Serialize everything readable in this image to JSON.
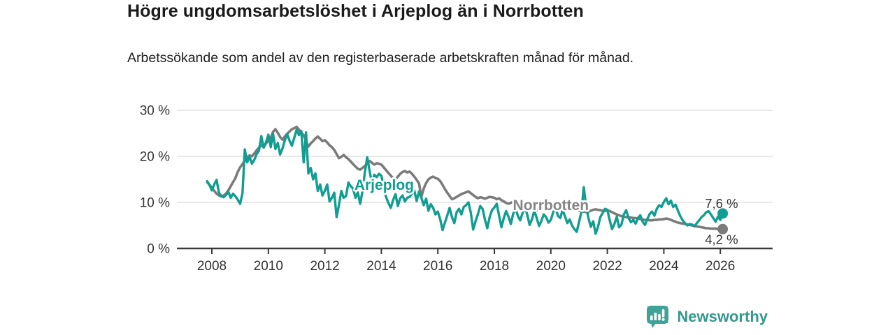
{
  "header": {
    "title": "Högre ungdomsarbetslöshet i Arjeplog än i Norrbotten",
    "subtitle": "Arbetssökande som andel av den registerbaserade arbetskraften månad för månad."
  },
  "footer": {
    "brand": "Newsworthy"
  },
  "colors": {
    "arjeplog": "#119d91",
    "norrbotten": "#7b7b7b",
    "norrbotten_label": "#858585",
    "brand_teal": "#3fa396",
    "grid": "#dcdcdc",
    "axis": "#3a3a3a",
    "text": "#333333"
  },
  "chart_data": {
    "type": "line",
    "title": "Högre ungdomsarbetslöshet i Arjeplog än i Norrbotten",
    "subtitle": "Arbetssökande som andel av den registerbaserade arbetskraften månad för månad.",
    "unit": "%",
    "x_start": 2007.8333,
    "x_step": 0.083333,
    "x_ticks": [
      2008,
      2010,
      2012,
      2014,
      2016,
      2018,
      2020,
      2022,
      2024,
      2026
    ],
    "y_ticks": [
      0,
      10,
      20,
      30
    ],
    "y_tick_suffix": " %",
    "ylim": [
      0,
      30
    ],
    "grid": true,
    "legend_position": "inline",
    "series": [
      {
        "name": "Norrbotten",
        "label_pos": {
          "x": 2020.0,
          "y": 9.4
        },
        "end_label": "4,2 %",
        "end_value": 4.2,
        "values": [
          14.4,
          13.8,
          13.2,
          12.5,
          11.9,
          11.5,
          11.3,
          11.5,
          11.9,
          12.6,
          13.5,
          14.4,
          15.3,
          16.6,
          17.6,
          18.3,
          19.1,
          19.7,
          20.2,
          20.0,
          20.6,
          21.3,
          21.9,
          22.4,
          22.0,
          22.8,
          23.4,
          24.0,
          25.3,
          25.9,
          25.1,
          24.2,
          23.6,
          24.3,
          24.9,
          25.4,
          25.9,
          26.1,
          26.4,
          25.8,
          25.1,
          24.6,
          23.4,
          22.1,
          22.8,
          23.3,
          23.9,
          24.3,
          23.8,
          23.3,
          23.5,
          23.0,
          22.4,
          22.0,
          21.4,
          20.5,
          19.6,
          19.9,
          20.3,
          19.8,
          19.4,
          18.9,
          18.3,
          17.8,
          17.3,
          17.1,
          17.5,
          17.9,
          18.4,
          19.0,
          18.6,
          18.2,
          18.5,
          18.4,
          18.2,
          17.6,
          17.0,
          16.4,
          15.8,
          15.2,
          15.0,
          15.6,
          16.2,
          16.6,
          16.8,
          16.5,
          16.7,
          16.2,
          15.6,
          14.9,
          14.1,
          11.2,
          13.0,
          14.2,
          15.0,
          15.4,
          15.6,
          15.3,
          15.1,
          14.6,
          13.8,
          12.9,
          12.1,
          11.4,
          10.7,
          10.9,
          11.2,
          11.5,
          11.8,
          12.0,
          12.2,
          12.4,
          12.0,
          11.6,
          11.2,
          10.9,
          11.1,
          11.0,
          10.8,
          11.0,
          11.2,
          11.1,
          11.0,
          10.7,
          10.9,
          10.5,
          10.2,
          9.9,
          9.7,
          9.9,
          10.1,
          10.3,
          10.0,
          9.8,
          9.6,
          9.3,
          9.0,
          8.8,
          8.6,
          8.4,
          8.3,
          8.4,
          8.6,
          8.8,
          8.6,
          8.5,
          8.6,
          8.8,
          9.3,
          9.7,
          9.9,
          9.7,
          9.4,
          9.1,
          8.9,
          8.7,
          8.5,
          8.3,
          8.2,
          8.1,
          8.0,
          7.9,
          8.0,
          8.2,
          8.4,
          8.5,
          8.4,
          8.3,
          8.2,
          8.1,
          8.3,
          8.1,
          7.9,
          7.6,
          7.4,
          7.2,
          7.0,
          6.9,
          6.8,
          6.8,
          6.7,
          6.6,
          6.6,
          6.5,
          6.4,
          6.3,
          6.2,
          6.2,
          6.1,
          6.1,
          6.2,
          6.2,
          6.3,
          6.3,
          6.4,
          6.5,
          6.4,
          6.2,
          6.0,
          5.8,
          5.6,
          5.5,
          5.4,
          5.3,
          5.2,
          5.1,
          5.0,
          4.9,
          4.8,
          4.7,
          4.6,
          4.5,
          4.4,
          4.4,
          4.3,
          4.3,
          4.3,
          4.2,
          4.2,
          4.2
        ]
      },
      {
        "name": "Arjeplog",
        "label_pos": {
          "x": 2014.1,
          "y": 13.8
        },
        "end_label": "7,6 %",
        "end_value": 7.6,
        "values": [
          14.6,
          13.8,
          12.6,
          13.9,
          14.9,
          12.1,
          11.4,
          11.1,
          11.6,
          12.3,
          11.0,
          11.9,
          11.3,
          10.6,
          9.7,
          12.0,
          21.5,
          18.7,
          19.9,
          18.4,
          19.2,
          20.5,
          21.2,
          24.4,
          21.9,
          23.0,
          24.7,
          22.0,
          24.9,
          21.6,
          22.9,
          20.4,
          21.7,
          23.5,
          24.8,
          23.4,
          22.3,
          24.0,
          25.8,
          24.6,
          25.5,
          18.7,
          25.2,
          16.3,
          17.5,
          15.0,
          16.3,
          12.5,
          13.9,
          11.5,
          12.5,
          13.9,
          10.2,
          11.0,
          12.1,
          6.8,
          9.5,
          12.5,
          11.0,
          11.4,
          14.3,
          13.5,
          13.0,
          11.0,
          12.2,
          9.7,
          12.5,
          16.5,
          19.8,
          16.8,
          14.2,
          16.0,
          15.5,
          16.2,
          15.8,
          13.5,
          11.2,
          9.9,
          8.8,
          10.5,
          11.8,
          9.2,
          10.9,
          11.5,
          10.2,
          11.0,
          11.2,
          11.9,
          12.6,
          10.3,
          12.4,
          11.0,
          9.4,
          10.8,
          8.2,
          9.6,
          8.8,
          7.4,
          8.0,
          6.3,
          4.0,
          5.6,
          7.2,
          8.8,
          6.8,
          5.5,
          7.9,
          8.6,
          7.4,
          9.0,
          9.4,
          10.0,
          7.8,
          4.1,
          5.9,
          7.4,
          9.2,
          8.6,
          6.3,
          4.4,
          6.8,
          8.3,
          8.9,
          9.7,
          7.2,
          4.6,
          6.6,
          8.1,
          6.9,
          5.3,
          7.5,
          8.8,
          7.0,
          6.1,
          7.7,
          9.0,
          7.3,
          5.1,
          6.4,
          8.2,
          6.6,
          4.9,
          6.0,
          7.4,
          6.8,
          5.6,
          6.2,
          7.9,
          8.8,
          7.1,
          6.6,
          8.4,
          7.0,
          5.5,
          6.3,
          5.0,
          4.2,
          3.6,
          5.8,
          8.0,
          13.3,
          9.1,
          6.5,
          4.7,
          5.9,
          3.2,
          4.6,
          6.8,
          7.7,
          8.6,
          8.4,
          6.1,
          4.2,
          5.3,
          6.9,
          4.6,
          5.2,
          7.4,
          8.3,
          6.6,
          5.7,
          6.2,
          5.4,
          6.6,
          7.2,
          5.8,
          5.1,
          6.4,
          7.5,
          8.0,
          7.1,
          8.6,
          9.4,
          9.0,
          10.1,
          10.9,
          9.6,
          10.4,
          9.0,
          9.5,
          8.2,
          7.0,
          6.1,
          5.5,
          5.0,
          5.3,
          5.2,
          4.8,
          5.5,
          6.1,
          6.8,
          7.2,
          7.9,
          8.1,
          7.4,
          6.6,
          5.8,
          6.9,
          6.2,
          7.6
        ]
      }
    ]
  }
}
